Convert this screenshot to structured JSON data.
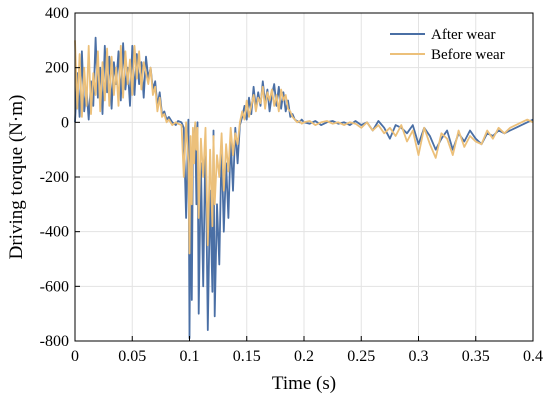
{
  "chart_data": {
    "type": "line",
    "title": "",
    "xlabel": "Time (s)",
    "ylabel": "Driving torque (N·m)",
    "xlim": [
      0,
      0.4
    ],
    "ylim": [
      -800,
      400
    ],
    "xticks": [
      0,
      0.05,
      0.1,
      0.15,
      0.2,
      0.25,
      0.3,
      0.35,
      0.4
    ],
    "xtick_labels": [
      "0",
      "0.05",
      "0.1",
      "0.15",
      "0.2",
      "0.25",
      "0.3",
      "0.35",
      "0.4"
    ],
    "yticks": [
      -800,
      -600,
      -400,
      -200,
      0,
      200,
      400
    ],
    "ytick_labels": [
      "-800",
      "-600",
      "-400",
      "-200",
      "0",
      "200",
      "400"
    ],
    "grid": true,
    "legend_position": "top-right",
    "series": [
      {
        "name": "After wear",
        "color": "#4a6fa5",
        "x": [
          0,
          0.002,
          0.004,
          0.006,
          0.008,
          0.01,
          0.012,
          0.014,
          0.016,
          0.018,
          0.02,
          0.022,
          0.024,
          0.026,
          0.028,
          0.03,
          0.032,
          0.034,
          0.036,
          0.038,
          0.04,
          0.042,
          0.044,
          0.046,
          0.048,
          0.05,
          0.052,
          0.054,
          0.056,
          0.058,
          0.06,
          0.062,
          0.064,
          0.066,
          0.068,
          0.07,
          0.072,
          0.074,
          0.076,
          0.078,
          0.08,
          0.082,
          0.085,
          0.088,
          0.09,
          0.093,
          0.095,
          0.097,
          0.099,
          0.1,
          0.101,
          0.102,
          0.103,
          0.104,
          0.105,
          0.106,
          0.107,
          0.108,
          0.11,
          0.112,
          0.114,
          0.116,
          0.118,
          0.12,
          0.121,
          0.122,
          0.124,
          0.126,
          0.128,
          0.13,
          0.132,
          0.134,
          0.136,
          0.138,
          0.14,
          0.142,
          0.144,
          0.146,
          0.148,
          0.15,
          0.152,
          0.154,
          0.156,
          0.158,
          0.16,
          0.162,
          0.164,
          0.166,
          0.168,
          0.17,
          0.172,
          0.174,
          0.176,
          0.178,
          0.18,
          0.182,
          0.184,
          0.186,
          0.188,
          0.19,
          0.192,
          0.194,
          0.196,
          0.198,
          0.2,
          0.205,
          0.21,
          0.215,
          0.22,
          0.225,
          0.23,
          0.235,
          0.24,
          0.245,
          0.25,
          0.255,
          0.26,
          0.265,
          0.27,
          0.275,
          0.28,
          0.285,
          0.29,
          0.295,
          0.3,
          0.305,
          0.31,
          0.315,
          0.32,
          0.325,
          0.33,
          0.335,
          0.34,
          0.345,
          0.35,
          0.355,
          0.36,
          0.365,
          0.37,
          0.375,
          0.38,
          0.385,
          0.39,
          0.395,
          0.4
        ],
        "y": [
          0,
          180,
          20,
          260,
          40,
          120,
          10,
          150,
          60,
          310,
          90,
          200,
          30,
          280,
          110,
          240,
          50,
          220,
          140,
          260,
          80,
          290,
          120,
          200,
          60,
          280,
          100,
          250,
          140,
          220,
          90,
          240,
          160,
          200,
          120,
          150,
          60,
          110,
          30,
          40,
          10,
          20,
          0,
          -10,
          5,
          0,
          -20,
          -350,
          10,
          -790,
          -200,
          -650,
          -100,
          -50,
          -10,
          -300,
          0,
          -700,
          -150,
          -600,
          -50,
          -760,
          -250,
          -620,
          -30,
          -710,
          -300,
          -520,
          -80,
          -400,
          -150,
          -350,
          -60,
          -250,
          -20,
          -150,
          -10,
          20,
          60,
          10,
          90,
          30,
          130,
          50,
          110,
          60,
          150,
          70,
          120,
          40,
          100,
          140,
          60,
          130,
          50,
          110,
          40,
          80,
          20,
          30,
          10,
          5,
          0,
          10,
          0,
          -5,
          5,
          -10,
          0,
          5,
          -5,
          0,
          -10,
          5,
          -10,
          0,
          -30,
          5,
          -20,
          -60,
          -10,
          -20,
          -40,
          -10,
          -80,
          -20,
          -50,
          -100,
          -60,
          -30,
          -100,
          -40,
          -70,
          -30,
          -60,
          -80,
          -40,
          -50,
          -30,
          -40,
          -30,
          -20,
          -10,
          0,
          10
        ]
      },
      {
        "name": "Before wear",
        "color": "#ecc07a",
        "x": [
          0,
          0.002,
          0.004,
          0.006,
          0.008,
          0.01,
          0.012,
          0.014,
          0.016,
          0.018,
          0.02,
          0.022,
          0.024,
          0.026,
          0.028,
          0.03,
          0.032,
          0.034,
          0.036,
          0.038,
          0.04,
          0.042,
          0.044,
          0.046,
          0.048,
          0.05,
          0.052,
          0.054,
          0.056,
          0.058,
          0.06,
          0.062,
          0.064,
          0.066,
          0.068,
          0.07,
          0.072,
          0.074,
          0.076,
          0.078,
          0.08,
          0.082,
          0.085,
          0.088,
          0.09,
          0.093,
          0.095,
          0.097,
          0.099,
          0.1,
          0.101,
          0.102,
          0.103,
          0.104,
          0.105,
          0.106,
          0.107,
          0.108,
          0.11,
          0.112,
          0.114,
          0.116,
          0.118,
          0.12,
          0.121,
          0.122,
          0.124,
          0.126,
          0.128,
          0.13,
          0.132,
          0.134,
          0.136,
          0.138,
          0.14,
          0.142,
          0.144,
          0.146,
          0.148,
          0.15,
          0.152,
          0.154,
          0.156,
          0.158,
          0.16,
          0.162,
          0.164,
          0.166,
          0.168,
          0.17,
          0.172,
          0.174,
          0.176,
          0.178,
          0.18,
          0.182,
          0.184,
          0.186,
          0.188,
          0.19,
          0.192,
          0.194,
          0.196,
          0.198,
          0.2,
          0.205,
          0.21,
          0.215,
          0.22,
          0.225,
          0.23,
          0.235,
          0.24,
          0.245,
          0.25,
          0.255,
          0.26,
          0.265,
          0.27,
          0.275,
          0.28,
          0.285,
          0.29,
          0.295,
          0.3,
          0.305,
          0.31,
          0.315,
          0.32,
          0.325,
          0.33,
          0.335,
          0.34,
          0.345,
          0.35,
          0.355,
          0.36,
          0.365,
          0.37,
          0.375,
          0.38,
          0.385,
          0.39,
          0.395,
          0.4
        ],
        "y": [
          300,
          50,
          250,
          20,
          200,
          60,
          280,
          30,
          180,
          100,
          260,
          40,
          220,
          80,
          270,
          60,
          240,
          100,
          200,
          60,
          280,
          90,
          260,
          140,
          230,
          100,
          280,
          160,
          260,
          120,
          220,
          180,
          140,
          200,
          100,
          130,
          40,
          90,
          20,
          30,
          0,
          10,
          -10,
          0,
          -5,
          -10,
          -200,
          0,
          -150,
          -480,
          -50,
          -300,
          -20,
          -150,
          0,
          -100,
          -20,
          -350,
          -60,
          -200,
          -20,
          -450,
          -100,
          -380,
          -50,
          -300,
          -120,
          -200,
          -40,
          -250,
          -80,
          -180,
          -20,
          -120,
          -40,
          -80,
          0,
          40,
          10,
          80,
          20,
          60,
          100,
          40,
          90,
          70,
          130,
          50,
          110,
          80,
          120,
          60,
          100,
          40,
          120,
          80,
          100,
          50,
          40,
          20,
          10,
          0,
          5,
          -5,
          0,
          5,
          -10,
          0,
          5,
          -5,
          0,
          -10,
          0,
          -5,
          -20,
          0,
          -30,
          -10,
          -40,
          -20,
          -50,
          -10,
          -70,
          -30,
          -120,
          -20,
          -80,
          -130,
          -40,
          -60,
          -120,
          -30,
          -90,
          -50,
          -70,
          -80,
          -30,
          -60,
          -20,
          -40,
          -20,
          -10,
          0,
          10,
          0
        ]
      }
    ]
  }
}
